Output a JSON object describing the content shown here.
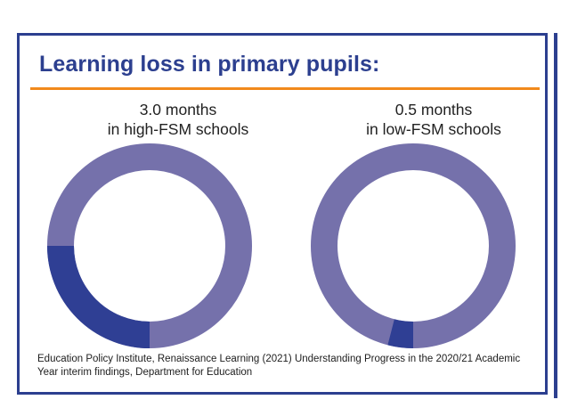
{
  "title": "Learning loss in primary pupils:",
  "source": "Education Policy Institute, Renaissance Learning (2021) Understanding Progress in the 2020/21 Academic Year interim findings, Department for Education",
  "colors": {
    "frame": "#2c3f8f",
    "accent_rule": "#f28a1c",
    "ring_base": "#7571ab",
    "ring_highlight": "#2f3f94"
  },
  "chart_data": [
    {
      "type": "pie",
      "caption_line1": "3.0 months",
      "caption_line2": "in high-FSM schools",
      "value_months": 3.0,
      "highlight_fraction": 0.25
    },
    {
      "type": "pie",
      "caption_line1": "0.5 months",
      "caption_line2": "in low-FSM schools",
      "value_months": 0.5,
      "highlight_fraction": 0.04
    }
  ]
}
